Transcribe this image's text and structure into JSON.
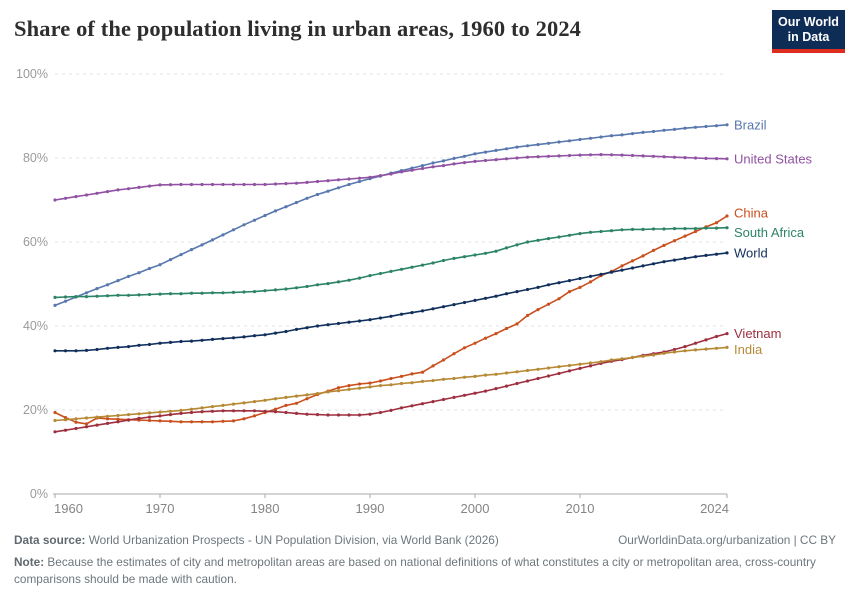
{
  "logo": {
    "line1": "Our World",
    "line2": "in Data",
    "bg_color": "#0e2d56",
    "bar_color": "#dc2d1f"
  },
  "title": "Share of the population living in urban areas, 1960 to 2024",
  "footer": {
    "source_label": "Data source:",
    "source_text": " World Urbanization Prospects - UN Population Division, via World Bank (2026)",
    "link_text": "OurWorldinData.org/urbanization | CC BY",
    "note_label": "Note:",
    "note_text": " Because the estimates of city and metropolitan areas are based on national definitions of what constitutes a city or metropolitan area, cross-country comparisons should be made with caution."
  },
  "chart_data": {
    "type": "line",
    "title": "Share of the population living in urban areas, 1960 to 2024",
    "xlabel": "",
    "ylabel": "",
    "xlim": [
      1960,
      2024
    ],
    "ylim": [
      0,
      100
    ],
    "x_ticks": [
      1960,
      1970,
      1980,
      1990,
      2000,
      2010,
      2024
    ],
    "y_ticks": [
      0,
      20,
      40,
      60,
      80,
      100
    ],
    "y_tick_suffix": "%",
    "grid": "horizontal-dashed",
    "legend_position": "labels-at-line-ends",
    "x_start_year": 1960,
    "x_step_years": 1,
    "series": [
      {
        "name": "Brazil",
        "color": "#5878ae",
        "label_dy": 0,
        "values": [
          44.9,
          45.9,
          46.9,
          47.9,
          48.9,
          49.8,
          50.8,
          51.8,
          52.7,
          53.7,
          54.6,
          55.8,
          57.0,
          58.2,
          59.3,
          60.5,
          61.7,
          62.9,
          64.1,
          65.2,
          66.3,
          67.4,
          68.4,
          69.4,
          70.4,
          71.3,
          72.1,
          72.9,
          73.7,
          74.4,
          75.1,
          75.7,
          76.4,
          77.0,
          77.6,
          78.2,
          78.8,
          79.3,
          79.9,
          80.4,
          81.0,
          81.4,
          81.8,
          82.2,
          82.6,
          82.9,
          83.2,
          83.5,
          83.8,
          84.1,
          84.4,
          84.7,
          85.0,
          85.3,
          85.5,
          85.8,
          86.1,
          86.3,
          86.6,
          86.8,
          87.1,
          87.3,
          87.5,
          87.7,
          87.9
        ]
      },
      {
        "name": "United States",
        "color": "#9152a3",
        "label_dy": 0,
        "values": [
          70.0,
          70.4,
          70.8,
          71.2,
          71.6,
          72.0,
          72.4,
          72.7,
          73.0,
          73.3,
          73.6,
          73.65,
          73.7,
          73.7,
          73.7,
          73.7,
          73.7,
          73.7,
          73.7,
          73.7,
          73.7,
          73.8,
          73.9,
          74.0,
          74.2,
          74.4,
          74.6,
          74.8,
          75.0,
          75.2,
          75.4,
          75.8,
          76.2,
          76.7,
          77.1,
          77.5,
          77.9,
          78.2,
          78.6,
          78.9,
          79.2,
          79.4,
          79.6,
          79.8,
          80.0,
          80.2,
          80.3,
          80.4,
          80.5,
          80.6,
          80.7,
          80.75,
          80.8,
          80.75,
          80.7,
          80.6,
          80.5,
          80.4,
          80.3,
          80.2,
          80.1,
          80.0,
          79.9,
          79.85,
          79.8
        ]
      },
      {
        "name": "China",
        "color": "#ca4f1e",
        "label_dy": -3,
        "values": [
          19.4,
          18.2,
          17.1,
          16.7,
          18.1,
          17.9,
          17.8,
          17.7,
          17.6,
          17.5,
          17.4,
          17.3,
          17.2,
          17.2,
          17.2,
          17.2,
          17.3,
          17.4,
          17.9,
          18.6,
          19.4,
          20.2,
          21.1,
          21.6,
          22.7,
          23.7,
          24.5,
          25.3,
          25.8,
          26.2,
          26.4,
          26.9,
          27.5,
          28.0,
          28.6,
          29.0,
          30.5,
          31.9,
          33.4,
          34.8,
          35.9,
          37.1,
          38.2,
          39.4,
          40.5,
          42.5,
          43.9,
          45.2,
          46.5,
          48.2,
          49.2,
          50.5,
          52.0,
          53.0,
          54.3,
          55.5,
          56.7,
          58.0,
          59.2,
          60.3,
          61.4,
          62.5,
          63.6,
          64.6,
          66.2
        ]
      },
      {
        "name": "South Africa",
        "color": "#2c8465",
        "label_dy": 5,
        "values": [
          46.8,
          46.9,
          47.0,
          47.0,
          47.1,
          47.2,
          47.3,
          47.3,
          47.4,
          47.5,
          47.6,
          47.7,
          47.7,
          47.8,
          47.8,
          47.9,
          47.9,
          48.0,
          48.1,
          48.2,
          48.4,
          48.6,
          48.8,
          49.1,
          49.4,
          49.8,
          50.1,
          50.5,
          50.9,
          51.4,
          52.0,
          52.5,
          53.0,
          53.5,
          54.0,
          54.5,
          55.0,
          55.6,
          56.1,
          56.5,
          56.9,
          57.3,
          57.8,
          58.6,
          59.3,
          60.0,
          60.4,
          60.8,
          61.2,
          61.6,
          62.0,
          62.3,
          62.5,
          62.7,
          62.9,
          63.0,
          63.0,
          63.1,
          63.1,
          63.2,
          63.2,
          63.2,
          63.3,
          63.3,
          63.4
        ]
      },
      {
        "name": "World",
        "color": "#112f5c",
        "label_dy": 0,
        "values": [
          34.1,
          34.1,
          34.1,
          34.2,
          34.4,
          34.7,
          34.9,
          35.1,
          35.4,
          35.6,
          35.9,
          36.1,
          36.3,
          36.4,
          36.6,
          36.8,
          37.0,
          37.2,
          37.4,
          37.7,
          37.9,
          38.3,
          38.7,
          39.2,
          39.6,
          40.0,
          40.3,
          40.6,
          40.9,
          41.2,
          41.5,
          41.9,
          42.3,
          42.8,
          43.2,
          43.6,
          44.1,
          44.6,
          45.1,
          45.6,
          46.1,
          46.6,
          47.1,
          47.7,
          48.2,
          48.7,
          49.2,
          49.8,
          50.3,
          50.8,
          51.3,
          51.8,
          52.3,
          52.8,
          53.3,
          53.8,
          54.3,
          54.8,
          55.3,
          55.7,
          56.1,
          56.5,
          56.8,
          57.1,
          57.4
        ]
      },
      {
        "name": "Vietnam",
        "color": "#9e2f3f",
        "label_dy": 0,
        "values": [
          14.8,
          15.2,
          15.6,
          16.0,
          16.4,
          16.8,
          17.2,
          17.6,
          18.0,
          18.3,
          18.6,
          18.9,
          19.2,
          19.4,
          19.6,
          19.7,
          19.8,
          19.8,
          19.8,
          19.8,
          19.7,
          19.6,
          19.4,
          19.2,
          19.0,
          18.9,
          18.8,
          18.8,
          18.8,
          18.8,
          19.0,
          19.4,
          19.9,
          20.5,
          21.0,
          21.5,
          22.0,
          22.5,
          23.0,
          23.5,
          24.0,
          24.5,
          25.1,
          25.7,
          26.3,
          26.9,
          27.5,
          28.1,
          28.7,
          29.3,
          29.9,
          30.5,
          31.1,
          31.6,
          32.0,
          32.5,
          33.0,
          33.4,
          33.8,
          34.4,
          35.1,
          35.9,
          36.7,
          37.5,
          38.2
        ]
      },
      {
        "name": "India",
        "color": "#b68a35",
        "label_dy": 2,
        "values": [
          17.5,
          17.7,
          17.9,
          18.1,
          18.3,
          18.5,
          18.7,
          18.9,
          19.1,
          19.3,
          19.5,
          19.7,
          19.9,
          20.2,
          20.5,
          20.8,
          21.1,
          21.4,
          21.7,
          22.0,
          22.3,
          22.7,
          23.0,
          23.3,
          23.6,
          23.9,
          24.3,
          24.6,
          24.9,
          25.2,
          25.5,
          25.8,
          26.0,
          26.3,
          26.5,
          26.8,
          27.0,
          27.3,
          27.5,
          27.8,
          28.0,
          28.3,
          28.5,
          28.8,
          29.1,
          29.4,
          29.7,
          30.0,
          30.3,
          30.6,
          30.9,
          31.2,
          31.5,
          31.9,
          32.2,
          32.5,
          32.8,
          33.1,
          33.5,
          33.8,
          34.1,
          34.3,
          34.5,
          34.7,
          34.9
        ]
      }
    ],
    "axis_colors": {
      "grid": "#e0e0e0",
      "axis_line": "#a8a8a8",
      "y_tick_label": "#9a9a9a",
      "x_tick_label": "#858585"
    }
  }
}
